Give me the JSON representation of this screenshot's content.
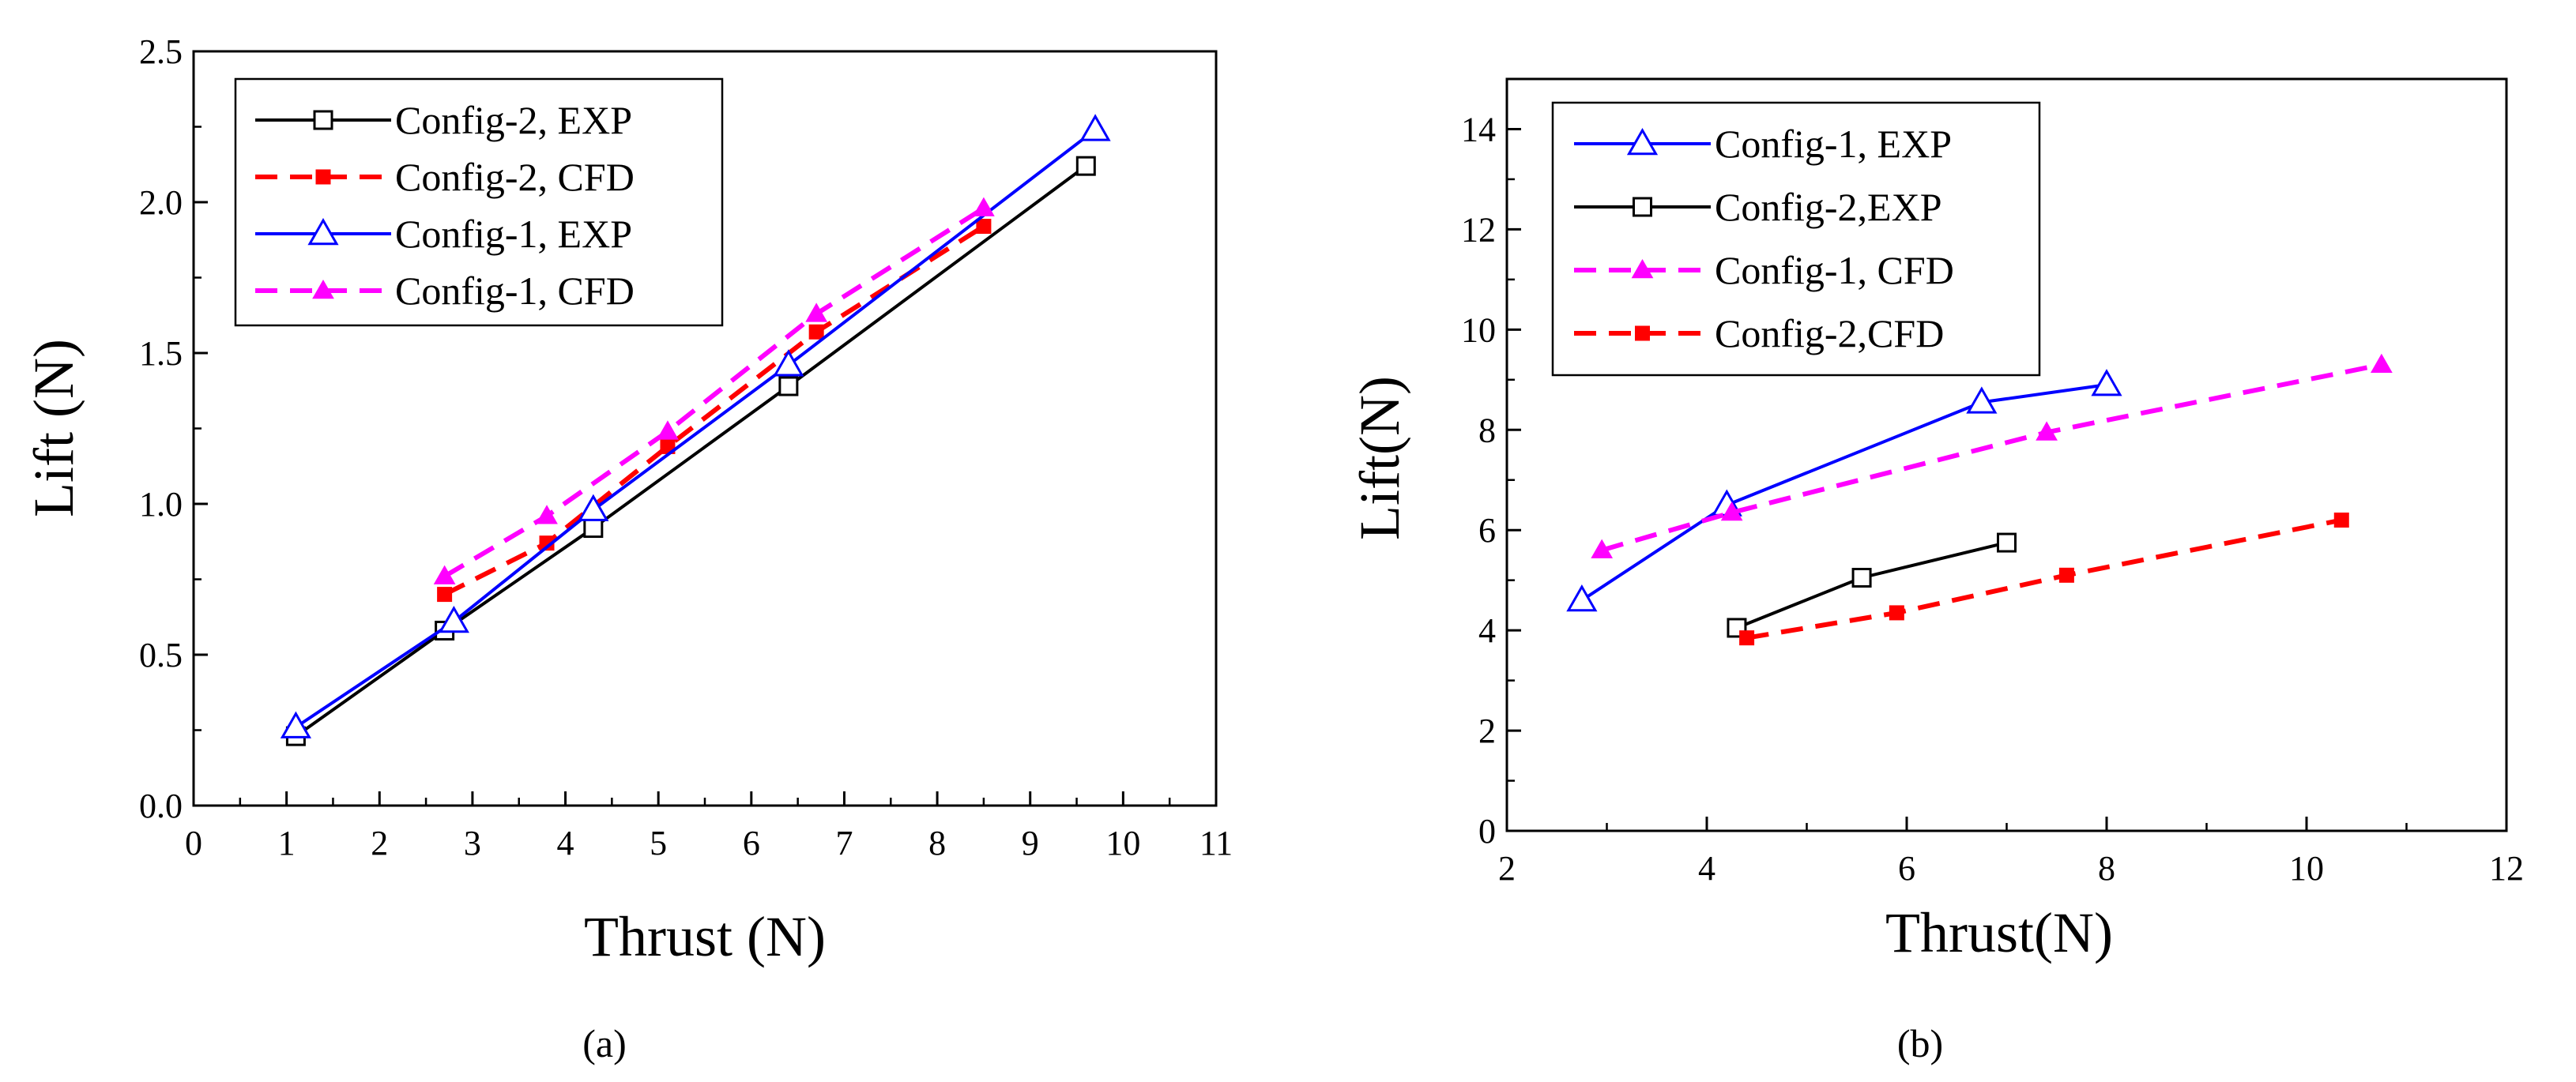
{
  "chart_data": [
    {
      "id": "a",
      "type": "line",
      "caption": "(a)",
      "xlabel": "Thrust (N)",
      "ylabel": "Lift (N)",
      "xlim": [
        0,
        11
      ],
      "ylim": [
        0,
        2.5
      ],
      "xticks": [
        "0",
        "1",
        "2",
        "3",
        "4",
        "5",
        "6",
        "7",
        "8",
        "9",
        "10",
        "11"
      ],
      "yticks": [
        "0.0",
        "0.5",
        "1.0",
        "1.5",
        "2.0",
        "2.5"
      ],
      "legend_position": "top-left",
      "series": [
        {
          "name": "Config-2, EXP",
          "color": "#000000",
          "dash": "solid",
          "marker": "square-open",
          "x": [
            1.1,
            2.7,
            4.3,
            6.4,
            9.6
          ],
          "y": [
            0.23,
            0.58,
            0.92,
            1.39,
            2.12
          ]
        },
        {
          "name": "Config-2, CFD",
          "color": "#ff0000",
          "dash": "dashed",
          "marker": "square-filled",
          "x": [
            2.7,
            3.8,
            5.1,
            6.7,
            8.5
          ],
          "y": [
            0.7,
            0.87,
            1.19,
            1.57,
            1.92
          ]
        },
        {
          "name": "Config-1, EXP",
          "color": "#0000ff",
          "dash": "solid",
          "marker": "triangle-open",
          "x": [
            1.1,
            2.8,
            4.3,
            6.4,
            9.7
          ],
          "y": [
            0.26,
            0.61,
            0.98,
            1.46,
            2.24
          ]
        },
        {
          "name": "Config-1, CFD",
          "color": "#ff00ff",
          "dash": "dashed",
          "marker": "triangle-filled",
          "x": [
            2.7,
            3.8,
            5.1,
            6.7,
            8.5
          ],
          "y": [
            0.76,
            0.96,
            1.24,
            1.63,
            1.98
          ]
        }
      ]
    },
    {
      "id": "b",
      "type": "line",
      "caption": "(b)",
      "xlabel": "Thrust(N)",
      "ylabel": "Lift(N)",
      "xlim": [
        2,
        12
      ],
      "ylim": [
        0,
        15
      ],
      "xticks": [
        "2",
        "4",
        "6",
        "8",
        "10",
        "12"
      ],
      "yticks": [
        "0",
        "2",
        "4",
        "6",
        "8",
        "10",
        "12",
        "14"
      ],
      "legend_position": "top-left",
      "series": [
        {
          "name": "Config-1, EXP",
          "color": "#0000ff",
          "dash": "solid",
          "marker": "triangle-open",
          "x": [
            2.75,
            4.2,
            6.75,
            8.0
          ],
          "y": [
            4.6,
            6.5,
            8.55,
            8.9
          ]
        },
        {
          "name": "Config-2,EXP",
          "color": "#000000",
          "dash": "solid",
          "marker": "square-open",
          "x": [
            4.3,
            5.55,
            7.0
          ],
          "y": [
            4.05,
            5.05,
            5.75
          ]
        },
        {
          "name": "Config-1, CFD",
          "color": "#ff00ff",
          "dash": "dashed",
          "marker": "triangle-filled",
          "x": [
            2.95,
            4.25,
            7.4,
            10.75
          ],
          "y": [
            5.6,
            6.35,
            7.95,
            9.3
          ]
        },
        {
          "name": "Config-2,CFD",
          "color": "#ff0000",
          "dash": "dashed",
          "marker": "square-filled",
          "x": [
            4.4,
            5.9,
            7.6,
            10.35
          ],
          "y": [
            3.85,
            4.35,
            5.1,
            6.2
          ]
        }
      ]
    }
  ]
}
